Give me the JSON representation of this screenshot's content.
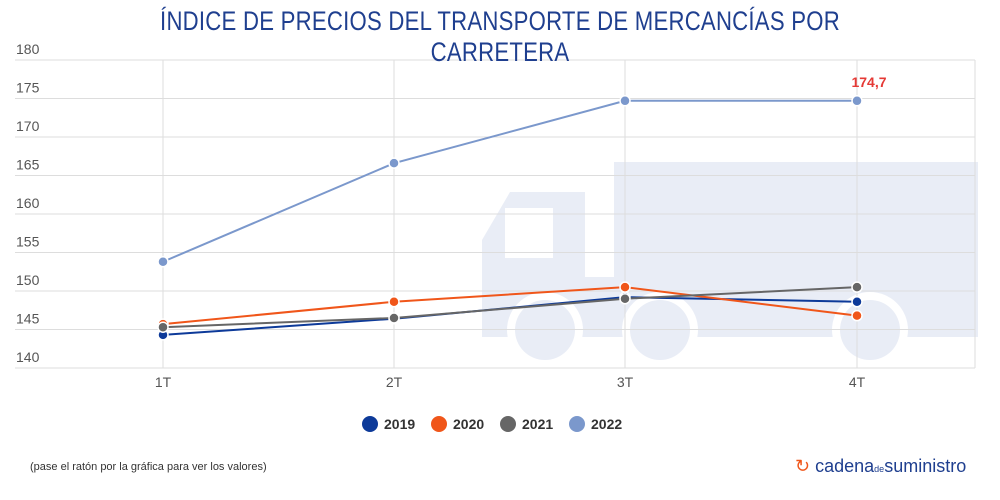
{
  "title": "ÍNDICE DE PRECIOS DEL TRANSPORTE DE MERCANCÍAS POR CARRETERA",
  "note": "(pase el ratón por la gráfica para ver los valores)",
  "logo": {
    "part1": "cadena",
    "part2": "de",
    "part3": "suministro"
  },
  "chart_data": {
    "type": "line",
    "title": "ÍNDICE DE PRECIOS DEL TRANSPORTE DE MERCANCÍAS POR CARRETERA",
    "categories": [
      "1T",
      "2T",
      "3T",
      "4T"
    ],
    "ylim": [
      140,
      180
    ],
    "yticks": [
      140,
      145,
      150,
      155,
      160,
      165,
      170,
      175,
      180
    ],
    "grid": true,
    "legend": "bottom",
    "series": [
      {
        "name": "2019",
        "color": "#0d3a99",
        "values": [
          144.3,
          146.4,
          149.2,
          148.6
        ]
      },
      {
        "name": "2020",
        "color": "#f0561a",
        "values": [
          145.7,
          148.6,
          150.5,
          146.8
        ]
      },
      {
        "name": "2021",
        "color": "#666666",
        "values": [
          145.3,
          146.5,
          149.0,
          150.5
        ]
      },
      {
        "name": "2022",
        "color": "#7b98cc",
        "values": [
          153.8,
          166.6,
          174.7,
          174.7
        ]
      }
    ],
    "annotation": {
      "label": "174,7",
      "series": "2022",
      "category": "4T",
      "color": "#e53935"
    }
  }
}
